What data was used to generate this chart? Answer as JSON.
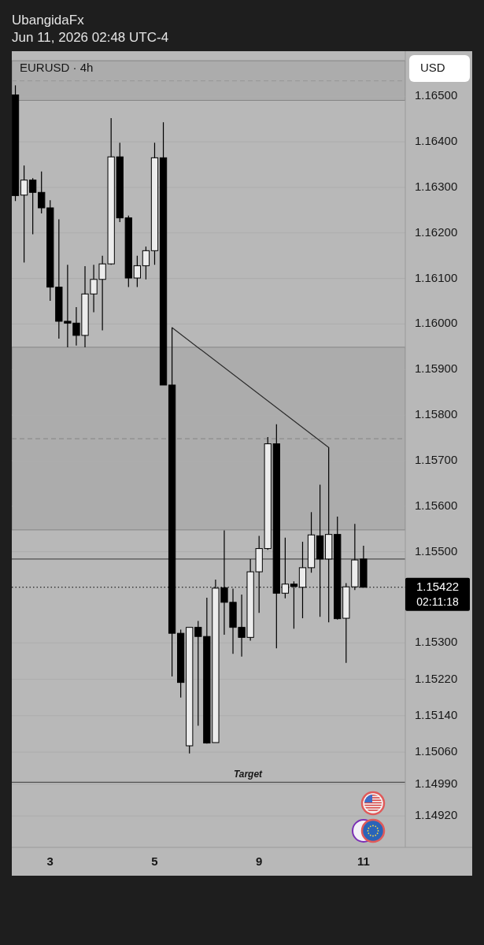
{
  "chart_data": {
    "type": "candlestick",
    "title": "EURUSD · 4h",
    "categories": [
      null,
      null,
      null,
      null,
      "3",
      null,
      null,
      null,
      null,
      null,
      null,
      null,
      null,
      null,
      null,
      null,
      "5",
      null,
      null,
      null,
      null,
      null,
      null,
      null,
      null,
      null,
      null,
      null,
      "9",
      null,
      null,
      null,
      null,
      null,
      null,
      null,
      null,
      null,
      null,
      null,
      "11"
    ],
    "ohlc": [
      [
        1.16503,
        1.16524,
        1.1627,
        1.16282
      ],
      [
        1.16283,
        1.16348,
        1.16135,
        1.16316
      ],
      [
        1.16316,
        1.1632,
        1.16197,
        1.16289
      ],
      [
        1.16289,
        1.16335,
        1.16243,
        1.16255
      ],
      [
        1.16255,
        1.16272,
        1.16051,
        1.16081
      ],
      [
        1.16081,
        1.1623,
        1.15968,
        1.16006
      ],
      [
        1.16006,
        1.1613,
        1.15949,
        1.16002
      ],
      [
        1.16002,
        1.16037,
        1.15953,
        1.15975
      ],
      [
        1.15975,
        1.16127,
        1.15949,
        1.16066
      ],
      [
        1.16066,
        1.1613,
        1.16026,
        1.16098
      ],
      [
        1.16098,
        1.1615,
        1.15986,
        1.16132
      ],
      [
        1.16132,
        1.16452,
        1.1613,
        1.16367
      ],
      [
        1.16367,
        1.16398,
        1.16224,
        1.16233
      ],
      [
        1.16233,
        1.16238,
        1.16081,
        1.16101
      ],
      [
        1.16101,
        1.1615,
        1.16081,
        1.16128
      ],
      [
        1.16128,
        1.1617,
        1.16098,
        1.16161
      ],
      [
        1.16161,
        1.16398,
        1.1613,
        1.16365
      ],
      [
        1.16365,
        1.16443,
        1.15866,
        1.15866
      ],
      [
        1.15866,
        1.15992,
        1.15226,
        1.15321
      ],
      [
        1.15321,
        1.15329,
        1.1518,
        1.15213
      ],
      [
        1.15074,
        1.15334,
        1.15057,
        1.15334
      ],
      [
        1.15334,
        1.15348,
        1.15118,
        1.15314
      ],
      [
        1.15314,
        1.15399,
        1.15079,
        1.1508
      ],
      [
        1.15081,
        1.15439,
        1.15081,
        1.1542
      ],
      [
        1.15421,
        1.15547,
        1.15318,
        1.15389
      ],
      [
        1.15389,
        1.15419,
        1.15276,
        1.15334
      ],
      [
        1.15334,
        1.15406,
        1.1527,
        1.15312
      ],
      [
        1.15312,
        1.15484,
        1.15305,
        1.15456
      ],
      [
        1.15456,
        1.15535,
        1.15366,
        1.15507
      ],
      [
        1.15507,
        1.15752,
        1.15504,
        1.15737
      ],
      [
        1.15737,
        1.1578,
        1.15288,
        1.15409
      ],
      [
        1.15409,
        1.15531,
        1.15398,
        1.15429
      ],
      [
        1.15429,
        1.15435,
        1.15331,
        1.15424
      ],
      [
        1.15422,
        1.15522,
        1.15354,
        1.15465
      ],
      [
        1.15465,
        1.15587,
        1.15454,
        1.15537
      ],
      [
        1.15535,
        1.15647,
        1.15357,
        1.15484
      ],
      [
        1.15484,
        1.15729,
        1.15345,
        1.15538
      ],
      [
        1.15538,
        1.15577,
        1.15351,
        1.15353
      ],
      [
        1.15354,
        1.15431,
        1.15256,
        1.15423
      ],
      [
        1.15423,
        1.15561,
        1.15416,
        1.15482
      ],
      [
        1.15484,
        1.15513,
        1.15422,
        1.15422
      ]
    ],
    "colors": [
      "#000000",
      "#ececec",
      "#000000",
      "#000000",
      "#000000",
      "#000000",
      "#000000",
      "#000000",
      "#ececec",
      "#ececec",
      "#ececec",
      "#ececec",
      "#000000",
      "#000000",
      "#ececec",
      "#ececec",
      "#ececec",
      "#000000",
      "#000000",
      "#000000",
      "#ececec",
      "#000000",
      "#000000",
      "#ececec",
      "#000000",
      "#000000",
      "#000000",
      "#ececec",
      "#ececec",
      "#ececec",
      "#000000",
      "#ececec",
      "#000000",
      "#ececec",
      "#ececec",
      "#000000",
      "#ececec",
      "#000000",
      "#ececec",
      "#ececec",
      "#000000"
    ],
    "series": [
      {
        "type": "line",
        "color": "#2a2a2a",
        "values": [
          null,
          null,
          null,
          null,
          null,
          null,
          null,
          null,
          null,
          null,
          null,
          null,
          null,
          null,
          null,
          null,
          null,
          null,
          1.15992,
          null,
          null,
          null,
          null,
          null,
          null,
          null,
          null,
          null,
          null,
          null,
          null,
          null,
          null,
          null,
          null,
          null,
          1.15729,
          null,
          null,
          null,
          null
        ]
      }
    ],
    "ylim": [
      1.14851,
      1.16599
    ],
    "yticks": [
      {
        "value": 1.165,
        "label": "1.16500"
      },
      {
        "value": 1.164,
        "label": "1.16400"
      },
      {
        "value": 1.163,
        "label": "1.16300"
      },
      {
        "value": 1.162,
        "label": "1.16200"
      },
      {
        "value": 1.161,
        "label": "1.16100"
      },
      {
        "value": 1.16,
        "label": "1.16000"
      },
      {
        "value": 1.159,
        "label": "1.15900"
      },
      {
        "value": 1.158,
        "label": "1.15800"
      },
      {
        "value": 1.157,
        "label": "1.15700"
      },
      {
        "value": 1.156,
        "label": "1.15600"
      },
      {
        "value": 1.155,
        "label": "1.15500"
      },
      {
        "value": 1.153,
        "label": "1.15300"
      },
      {
        "value": 1.1522,
        "label": "1.15220"
      },
      {
        "value": 1.1514,
        "label": "1.15140"
      },
      {
        "value": 1.1506,
        "label": "1.15060"
      },
      {
        "value": 1.1499,
        "label": "1.14990"
      },
      {
        "value": 1.1492,
        "label": "1.14920"
      }
    ],
    "grid": "y",
    "bands": [
      {
        "axis": "y",
        "from": 1.15548,
        "to": 1.15949,
        "color": "#acacac"
      },
      {
        "axis": "y",
        "from": 1.16491,
        "to": 1.16578,
        "color": "#acacac"
      }
    ],
    "ref_lines": [
      {
        "axis": "y",
        "value": 1.15748,
        "line_style": "dashed",
        "color": "#8c8c8c"
      },
      {
        "axis": "y",
        "value": 1.16534,
        "line_style": "dashed",
        "color": "#9a9a9a"
      },
      {
        "axis": "y",
        "value": 1.15484,
        "color": "#505050"
      },
      {
        "axis": "y",
        "value": 1.14994,
        "label": "Target",
        "color": "#505050"
      },
      {
        "axis": "y",
        "value": 1.15422,
        "label": "1.15422",
        "line_style": "dotted",
        "color": "#000000"
      }
    ],
    "annotations": [
      "UbangidaFx",
      "Jun 11, 2026 02:48 UTC-4",
      "USD",
      "02:11:18"
    ]
  }
}
